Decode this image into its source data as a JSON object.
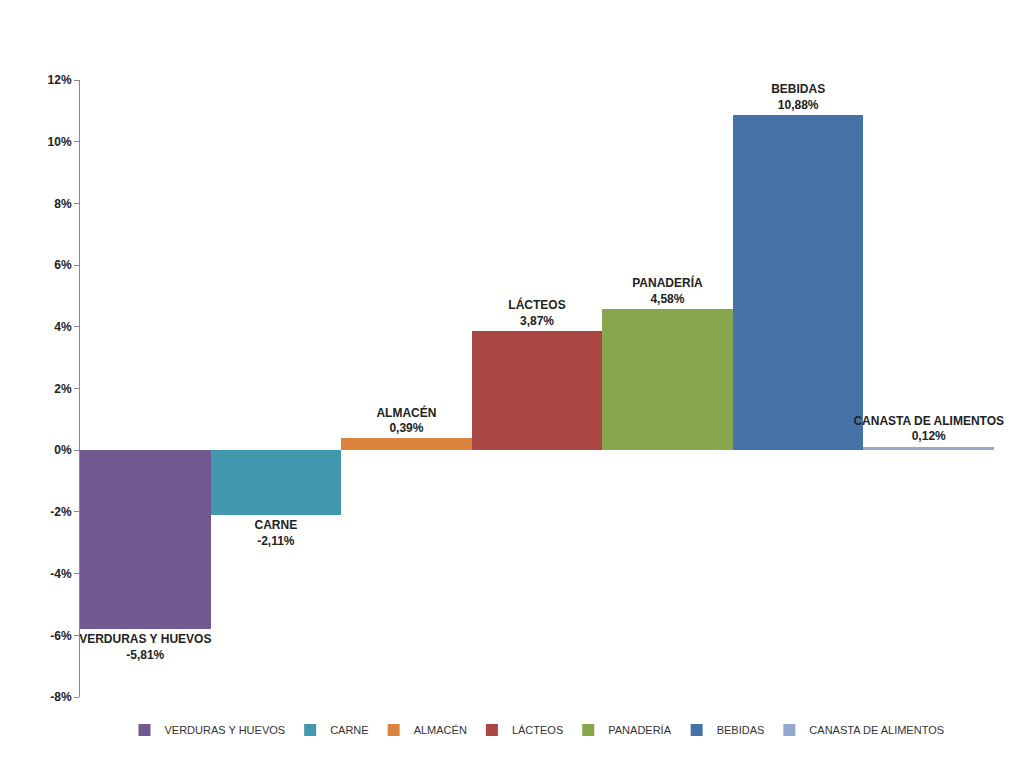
{
  "chart_data": {
    "type": "bar",
    "categories": [
      "VERDURAS Y HUEVOS",
      "CARNE",
      "ALMACÉN",
      "LÁCTEOS",
      "PANADERÍA",
      "BEBIDAS",
      "CANASTA DE ALIMENTOS"
    ],
    "values": [
      -5.81,
      -2.11,
      0.39,
      3.87,
      4.58,
      10.88,
      0.12
    ],
    "value_labels": [
      "-5,81%",
      "-2,11%",
      "0,39%",
      "3,87%",
      "4,58%",
      "10,88%",
      "0,12%"
    ],
    "colors": [
      "#71588F",
      "#4198AF",
      "#DB843D",
      "#AA4643",
      "#89A54E",
      "#4572A7",
      "#93A9CF"
    ],
    "ylim": [
      -8,
      12
    ],
    "yticks": [
      {
        "value": -8,
        "label": "-8%"
      },
      {
        "value": -6,
        "label": "-6%"
      },
      {
        "value": -4,
        "label": "-4%"
      },
      {
        "value": -2,
        "label": "-2%"
      },
      {
        "value": 0,
        "label": "0%"
      },
      {
        "value": 2,
        "label": "2%"
      },
      {
        "value": 4,
        "label": "4%"
      },
      {
        "value": 6,
        "label": "6%"
      },
      {
        "value": 8,
        "label": "8%"
      },
      {
        "value": 10,
        "label": "10%"
      },
      {
        "value": 12,
        "label": "12%"
      }
    ],
    "grid": false,
    "legend": "bottom",
    "data_labels": true,
    "tick_labels": "y"
  }
}
